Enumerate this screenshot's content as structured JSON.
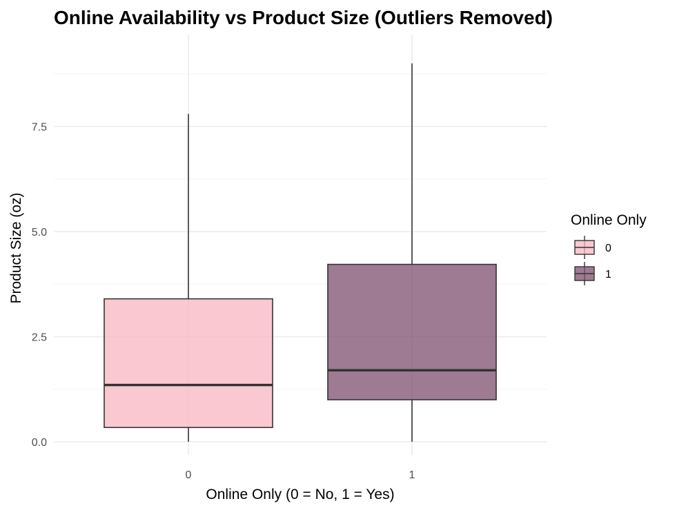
{
  "chart_data": {
    "type": "box",
    "title": "Online Availability vs Product Size (Outliers Removed)",
    "xlabel": "Online Only (0 = No, 1 = Yes)",
    "ylabel": "Product Size (oz)",
    "categories": [
      "0",
      "1"
    ],
    "ylim": [
      -0.4,
      9.0
    ],
    "yticks": [
      0.0,
      2.5,
      5.0,
      7.5
    ],
    "ytick_labels": [
      "0.0",
      "2.5",
      "5.0",
      "7.5"
    ],
    "grid": true,
    "legend": {
      "title": "Online Only",
      "position": "right",
      "entries": [
        "0",
        "1"
      ]
    },
    "boxes": [
      {
        "category": "0",
        "min": 0.0,
        "q1": 0.34,
        "median": 1.35,
        "q3": 3.4,
        "max": 7.8,
        "color": "#f7b6c2"
      },
      {
        "category": "1",
        "min": 0.0,
        "q1": 1.0,
        "median": 1.7,
        "q3": 4.22,
        "max": 9.0,
        "color": "#7d4f6e"
      }
    ]
  }
}
